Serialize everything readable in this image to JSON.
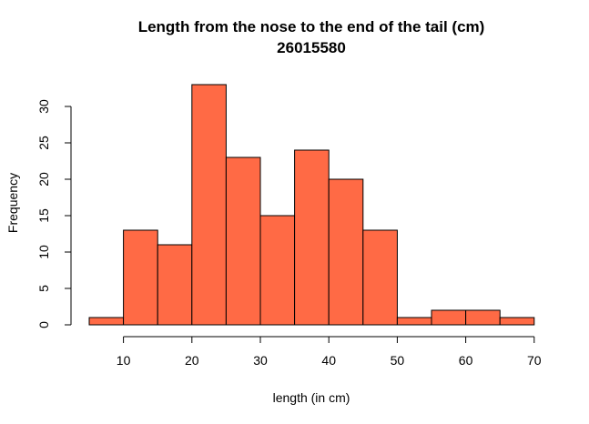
{
  "chart_data": {
    "type": "bar",
    "title": "Length from the nose to the end of the tail (cm)",
    "subtitle": "26015580",
    "xlabel": "length (in cm)",
    "ylabel": "Frequency",
    "bin_edges": [
      5,
      10,
      15,
      20,
      25,
      30,
      35,
      40,
      45,
      50,
      55,
      60,
      65,
      70
    ],
    "values": [
      1,
      13,
      11,
      33,
      23,
      15,
      24,
      20,
      13,
      1,
      2,
      2,
      1
    ],
    "xlim": [
      5,
      70
    ],
    "ylim": [
      0,
      33
    ],
    "x_ticks": [
      10,
      20,
      30,
      40,
      50,
      60,
      70
    ],
    "y_ticks": [
      0,
      5,
      10,
      15,
      20,
      25,
      30
    ],
    "bar_color": "#ff6a45",
    "grid": false,
    "legend": "none"
  }
}
